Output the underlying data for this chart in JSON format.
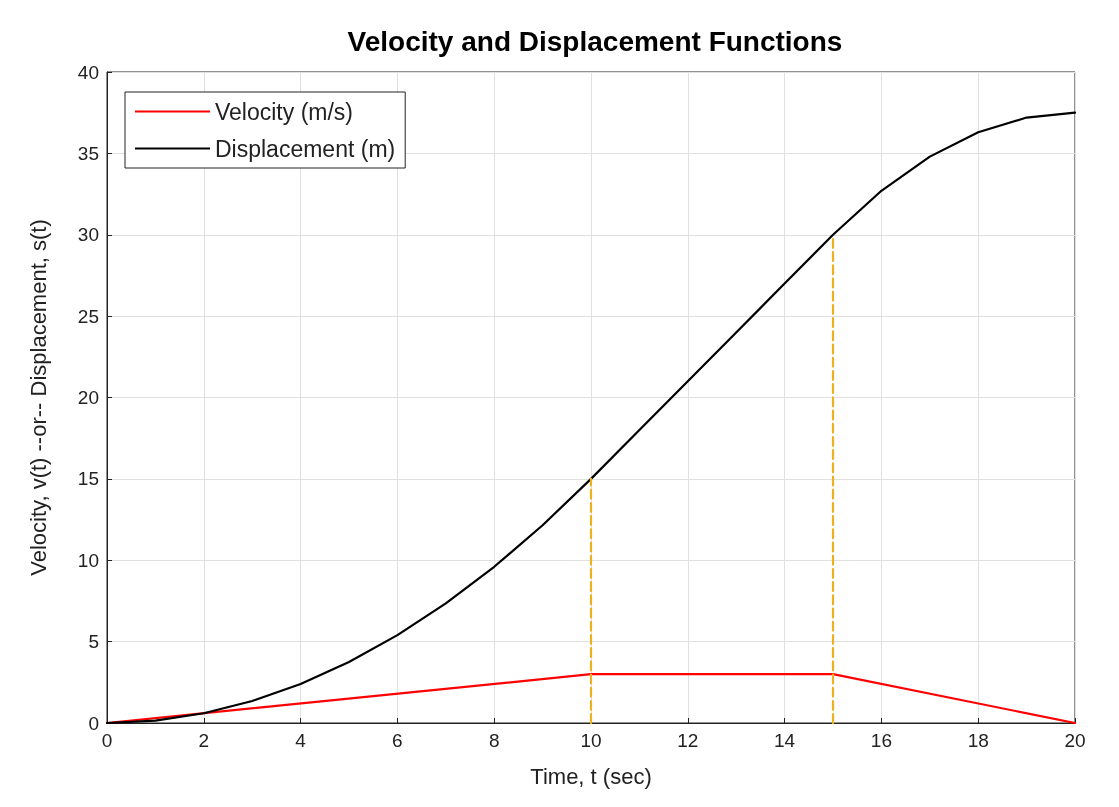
{
  "chart_data": {
    "type": "line",
    "title": "Velocity and Displacement Functions",
    "xlabel": "Time, t (sec)",
    "ylabel": "Velocity, v(t) --or-- Displacement, s(t)",
    "series": [
      {
        "name": "Velocity (m/s)",
        "color": "#ff0000",
        "x": [
          0,
          10,
          15,
          20
        ],
        "values": [
          0,
          3,
          3,
          0
        ]
      },
      {
        "name": "Displacement (m)",
        "color": "#000000",
        "x": [
          0,
          1,
          2,
          3,
          4,
          5,
          6,
          7,
          8,
          9,
          10,
          11,
          12,
          13,
          14,
          15,
          16,
          17,
          18,
          19,
          20
        ],
        "values": [
          0,
          0.15,
          0.6,
          1.35,
          2.4,
          3.75,
          5.4,
          7.35,
          9.6,
          12.15,
          15,
          18,
          21,
          24,
          27,
          30,
          32.7,
          34.8,
          36.3,
          37.2,
          37.5
        ]
      },
      {
        "color": "#edb120",
        "line_style": "dashed",
        "x": [
          10,
          10
        ],
        "values": [
          0,
          15
        ]
      },
      {
        "color": "#edb120",
        "line_style": "dashed",
        "x": [
          15,
          15
        ],
        "values": [
          0,
          30
        ]
      }
    ],
    "xlim": [
      0,
      20
    ],
    "xticks": [
      0,
      2,
      4,
      6,
      8,
      10,
      12,
      14,
      16,
      18,
      20
    ],
    "ylim": [
      0,
      40
    ],
    "yticks": [
      0,
      5,
      10,
      15,
      20,
      25,
      30,
      35,
      40
    ],
    "grid": true,
    "legend": "top left",
    "marker": "none",
    "line_style": "solid"
  }
}
